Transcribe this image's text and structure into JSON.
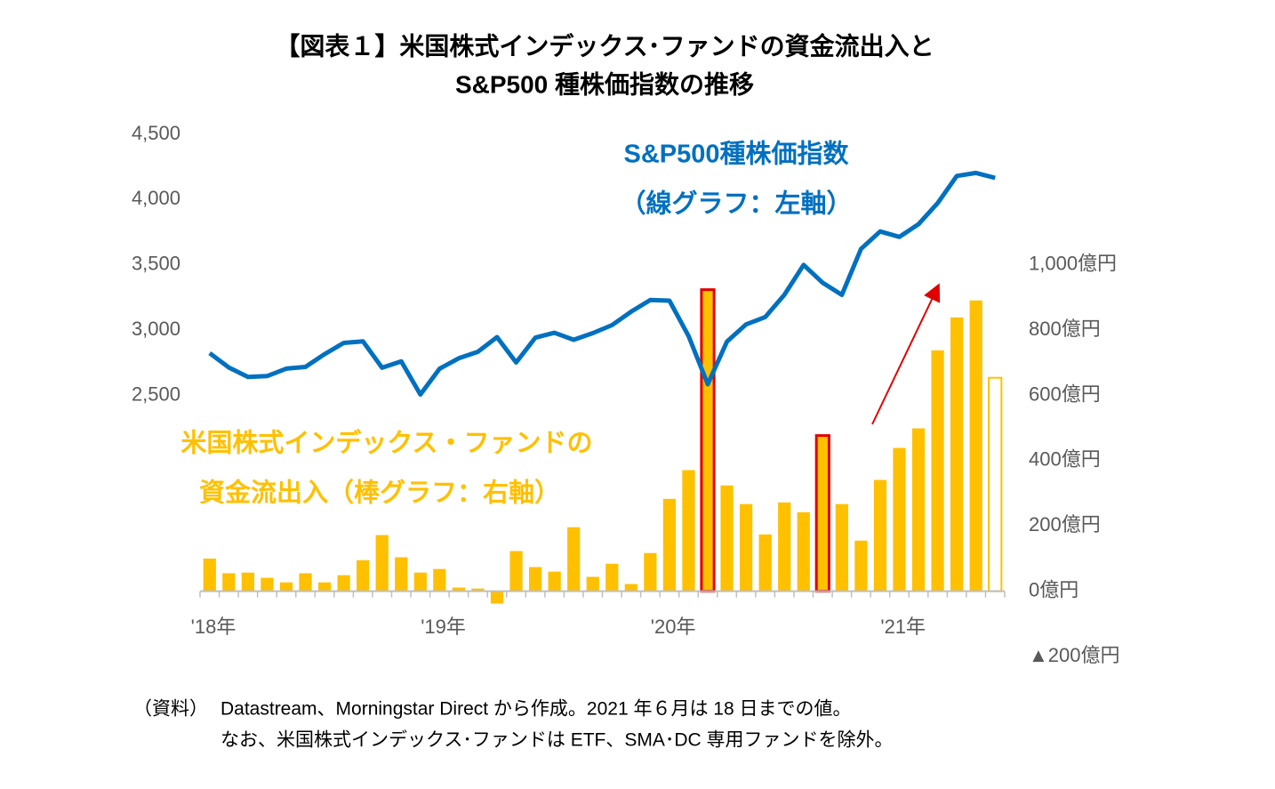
{
  "chart_data": {
    "type": "combo",
    "title": [
      "【図表１】米国株式インデックス･ファンドの資金流出入と",
      "S&P500 種株価指数の推移"
    ],
    "categories": [
      "'18年",
      null,
      null,
      null,
      null,
      null,
      null,
      null,
      null,
      null,
      null,
      null,
      "'19年",
      null,
      null,
      null,
      null,
      null,
      null,
      null,
      null,
      null,
      null,
      null,
      "'20年",
      null,
      null,
      null,
      null,
      null,
      null,
      null,
      null,
      null,
      null,
      null,
      "'21年",
      null,
      null,
      null,
      null,
      null
    ],
    "series": [
      {
        "type": "bar",
        "axis": "y2",
        "color": "#FFC000",
        "edgecolor": "#E00000",
        "highlight": [
          26,
          32
        ],
        "hollow": [
          41
        ],
        "values": [
          100,
          55,
          57,
          41,
          27,
          55,
          27,
          49,
          95,
          172,
          104,
          57,
          68,
          11,
          8,
          -38,
          123,
          74,
          60,
          196,
          44,
          84,
          22,
          117,
          283,
          371,
          924,
          324,
          267,
          174,
          272,
          242,
          477,
          267,
          155,
          341,
          439,
          499,
          738,
          839,
          891,
          654
        ]
      },
      {
        "type": "line",
        "axis": "y",
        "color": "#0070C0",
        "values": [
          2824,
          2714,
          2641,
          2648,
          2705,
          2718,
          2816,
          2902,
          2914,
          2712,
          2760,
          2507,
          2704,
          2784,
          2834,
          2946,
          2752,
          2942,
          2980,
          2926,
          2977,
          3038,
          3141,
          3231,
          3226,
          2954,
          2585,
          2912,
          3044,
          3100,
          3271,
          3500,
          3363,
          3270,
          3622,
          3756,
          3714,
          3811,
          3973,
          4181,
          4204,
          4166
        ]
      }
    ],
    "ylim": [
      500,
      4500
    ],
    "yticks": [
      {
        "value": 2500,
        "label": "2,500"
      },
      {
        "value": 3000,
        "label": "3,000"
      },
      {
        "value": 3500,
        "label": "3,500"
      },
      {
        "value": 4000,
        "label": "4,000"
      },
      {
        "value": 4500,
        "label": "4,500"
      }
    ],
    "y2lim": [
      -200,
      1400
    ],
    "y2ticks": [
      {
        "value": -200,
        "label": "▲200億円"
      },
      {
        "value": 0,
        "label": "0億円"
      },
      {
        "value": 200,
        "label": "200億円"
      },
      {
        "value": 400,
        "label": "400億円"
      },
      {
        "value": 600,
        "label": "600億円"
      },
      {
        "value": 800,
        "label": "800億円"
      },
      {
        "value": 1000,
        "label": "1,000億円"
      }
    ],
    "line_annotation": [
      "S&P500種株価指数",
      "（線グラフ：左軸）"
    ],
    "bar_annotation": [
      "米国株式インデックス・ファンドの",
      "資金流出入（棒グラフ：右軸）"
    ],
    "source": [
      "（資料）",
      "Datastream、Morningstar Direct から作成。2021 年６月は 18 日までの値。",
      "なお、米国株式インデックス･ファンドは ETF、SMA･DC 専用ファンドを除外。"
    ]
  }
}
